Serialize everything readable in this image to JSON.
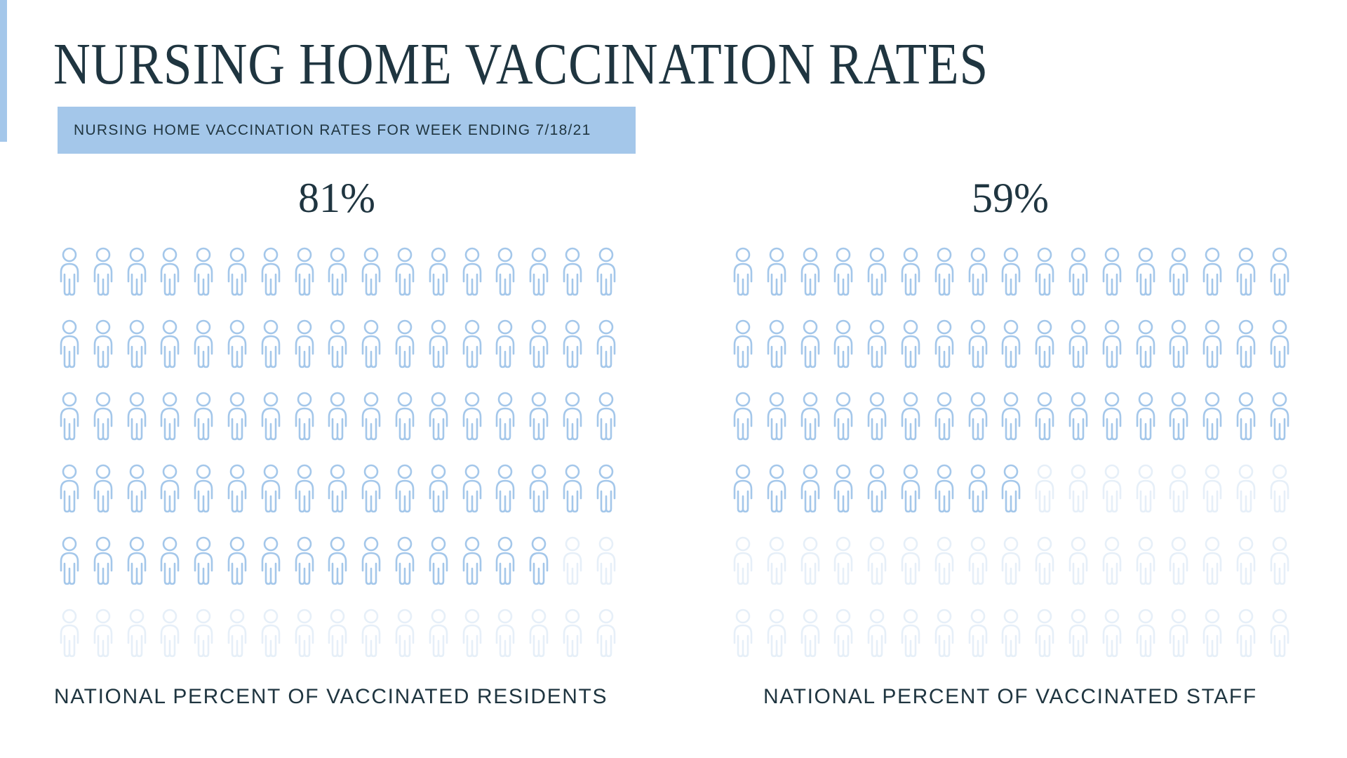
{
  "title": "NURSING HOME VACCINATION RATES",
  "subtitle": "NURSING HOME VACCINATION RATES FOR WEEK ENDING 7/18/21",
  "colors": {
    "accent": "#a4c7ea",
    "text": "#1f3540",
    "icon_faded": "#e6eff8"
  },
  "chart_data": {
    "type": "pictogram",
    "title": "NURSING HOME VACCINATION RATES",
    "panels": [
      {
        "name": "residents",
        "value_label": "81%",
        "value": 81,
        "label": "NATIONAL PERCENT OF VACCINATED RESIDENTS",
        "icon": "person-icon",
        "columns": 17,
        "rows": 6,
        "filled_icons": 83
      },
      {
        "name": "staff",
        "value_label": "59%",
        "value": 59,
        "label": "NATIONAL PERCENT OF VACCINATED STAFF",
        "icon": "person-icon",
        "columns": 17,
        "rows": 6,
        "filled_icons": 60
      }
    ]
  }
}
